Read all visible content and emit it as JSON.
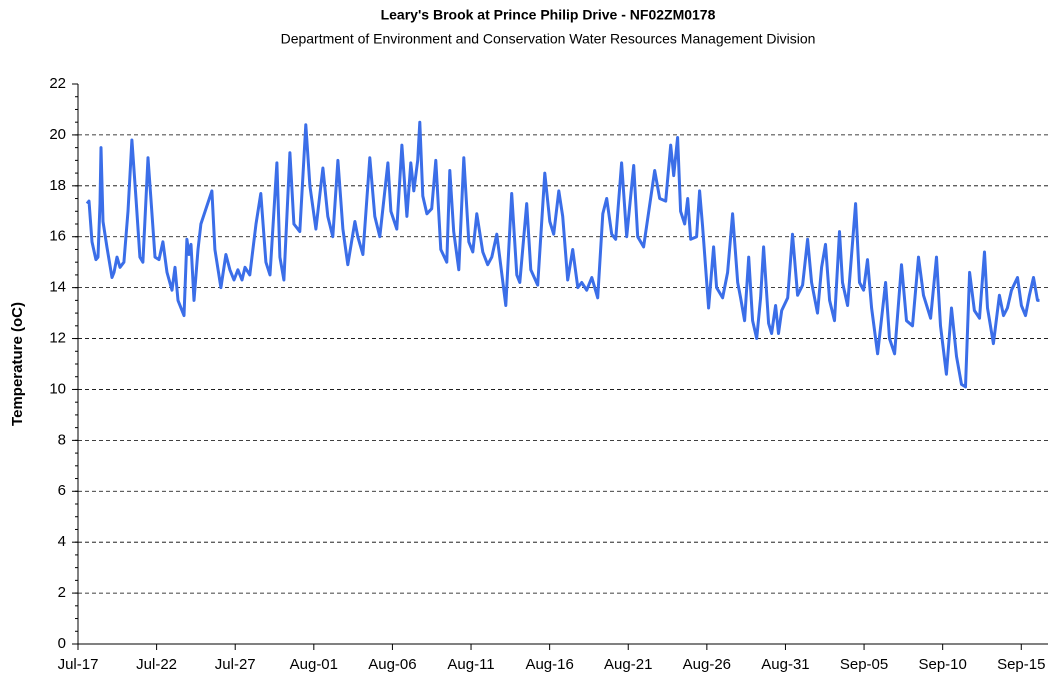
{
  "chart_data": {
    "type": "line",
    "title": "Leary's Brook at Prince Philip Drive - NF02ZM0178",
    "subtitle": "Department of Environment and Conservation Water Resources Management Division",
    "y_label": "Temperature (oC)",
    "xlim": [
      0,
      61.7
    ],
    "ylim": [
      0,
      22
    ],
    "xticks": [
      {
        "value": 0,
        "label": "Jul-17"
      },
      {
        "value": 5,
        "label": "Jul-22"
      },
      {
        "value": 10,
        "label": "Jul-27"
      },
      {
        "value": 15,
        "label": "Aug-01"
      },
      {
        "value": 20,
        "label": "Aug-06"
      },
      {
        "value": 25,
        "label": "Aug-11"
      },
      {
        "value": 30,
        "label": "Aug-16"
      },
      {
        "value": 35,
        "label": "Aug-21"
      },
      {
        "value": 40,
        "label": "Aug-26"
      },
      {
        "value": 45,
        "label": "Aug-31"
      },
      {
        "value": 50,
        "label": "Sep-05"
      },
      {
        "value": 55,
        "label": "Sep-10"
      },
      {
        "value": 60,
        "label": "Sep-15"
      }
    ],
    "yticks": [
      0,
      2,
      4,
      6,
      8,
      10,
      12,
      14,
      16,
      18,
      20,
      22
    ],
    "grid": true,
    "series": [
      {
        "name": "Temperature",
        "color": "#3b6ee8",
        "x": [
          0.57,
          0.7,
          0.89,
          1.14,
          1.27,
          1.4,
          1.46,
          1.59,
          1.84,
          2.16,
          2.29,
          2.48,
          2.67,
          2.92,
          3.18,
          3.43,
          3.69,
          3.94,
          4.13,
          4.45,
          4.64,
          4.9,
          5.15,
          5.4,
          5.66,
          5.98,
          6.17,
          6.36,
          6.74,
          6.93,
          7.06,
          7.19,
          7.38,
          7.63,
          7.82,
          8.52,
          8.71,
          9.09,
          9.41,
          9.66,
          9.92,
          10.17,
          10.43,
          10.62,
          10.93,
          11.32,
          11.63,
          11.95,
          12.21,
          12.65,
          12.84,
          13.1,
          13.48,
          13.73,
          14.11,
          14.49,
          14.75,
          15.13,
          15.58,
          15.89,
          16.21,
          16.53,
          16.85,
          17.16,
          17.61,
          17.8,
          18.12,
          18.56,
          18.88,
          19.2,
          19.71,
          19.9,
          20.28,
          20.6,
          20.92,
          21.17,
          21.36,
          21.61,
          21.74,
          21.93,
          22.19,
          22.5,
          22.76,
          23.08,
          23.46,
          23.65,
          23.9,
          24.22,
          24.54,
          24.86,
          25.11,
          25.37,
          25.75,
          26.06,
          26.32,
          26.64,
          27.21,
          27.59,
          27.91,
          28.1,
          28.54,
          28.8,
          29.24,
          29.69,
          30.01,
          30.26,
          30.58,
          30.83,
          31.15,
          31.47,
          31.79,
          32.04,
          32.36,
          32.68,
          33.06,
          33.38,
          33.63,
          33.95,
          34.2,
          34.58,
          34.9,
          35.35,
          35.6,
          35.98,
          36.68,
          37.0,
          37.38,
          37.7,
          37.89,
          38.14,
          38.33,
          38.59,
          38.78,
          38.97,
          39.35,
          39.54,
          39.73,
          40.11,
          40.43,
          40.62,
          41.0,
          41.32,
          41.64,
          41.96,
          42.15,
          42.4,
          42.66,
          42.91,
          43.17,
          43.42,
          43.61,
          43.93,
          44.12,
          44.37,
          44.56,
          44.76,
          45.14,
          45.45,
          45.77,
          46.09,
          46.41,
          46.66,
          47.04,
          47.3,
          47.55,
          47.81,
          48.12,
          48.44,
          48.63,
          48.95,
          49.46,
          49.71,
          49.97,
          50.22,
          50.48,
          50.86,
          51.37,
          51.62,
          51.94,
          52.38,
          52.7,
          53.08,
          53.46,
          53.78,
          54.23,
          54.61,
          54.86,
          55.24,
          55.56,
          55.88,
          56.2,
          56.45,
          56.71,
          57.02,
          57.34,
          57.66,
          57.85,
          58.23,
          58.61,
          58.87,
          59.12,
          59.38,
          59.76,
          60.01,
          60.27,
          60.52,
          60.78,
          61.03,
          61.16
        ],
        "values": [
          17.3,
          17.4,
          15.8,
          15.1,
          15.2,
          17.3,
          19.5,
          16.6,
          15.6,
          14.4,
          14.6,
          15.2,
          14.8,
          15.0,
          17.0,
          19.8,
          17.5,
          15.2,
          15.0,
          19.1,
          17.5,
          15.2,
          15.1,
          15.8,
          14.6,
          13.9,
          14.8,
          13.5,
          12.9,
          15.9,
          15.3,
          15.7,
          13.5,
          15.5,
          16.5,
          17.8,
          15.5,
          14.0,
          15.3,
          14.7,
          14.3,
          14.7,
          14.3,
          14.8,
          14.5,
          16.5,
          17.7,
          15.0,
          14.5,
          18.9,
          15.2,
          14.3,
          19.3,
          16.5,
          16.2,
          20.4,
          18.0,
          16.3,
          18.7,
          16.8,
          16.0,
          19.0,
          16.3,
          14.9,
          16.6,
          16.0,
          15.3,
          19.1,
          16.8,
          16.0,
          18.9,
          17.0,
          16.3,
          19.6,
          16.8,
          18.9,
          17.8,
          19.0,
          20.5,
          17.6,
          16.9,
          17.1,
          19.0,
          15.5,
          15.0,
          18.6,
          16.2,
          14.7,
          19.1,
          15.8,
          15.4,
          16.9,
          15.4,
          14.9,
          15.2,
          16.1,
          13.3,
          17.7,
          14.5,
          14.2,
          17.3,
          14.7,
          14.1,
          18.5,
          16.6,
          16.1,
          17.8,
          16.8,
          14.3,
          15.5,
          14.0,
          14.2,
          13.9,
          14.4,
          13.6,
          16.9,
          17.5,
          16.1,
          15.9,
          18.9,
          16.0,
          18.8,
          16.0,
          15.6,
          18.6,
          17.5,
          17.4,
          19.6,
          18.4,
          19.9,
          17.0,
          16.5,
          17.5,
          15.9,
          16.0,
          17.8,
          16.4,
          13.2,
          15.6,
          14.0,
          13.6,
          14.6,
          16.9,
          14.2,
          13.6,
          12.7,
          15.2,
          12.7,
          12.0,
          13.6,
          15.6,
          12.6,
          12.2,
          13.3,
          12.2,
          13.1,
          13.6,
          16.1,
          13.7,
          14.1,
          15.9,
          14.2,
          13.0,
          14.8,
          15.7,
          13.5,
          12.7,
          16.2,
          14.2,
          13.3,
          17.3,
          14.2,
          13.9,
          15.1,
          13.2,
          11.4,
          14.2,
          12.0,
          11.4,
          14.9,
          12.7,
          12.5,
          15.2,
          13.7,
          12.8,
          15.2,
          12.5,
          10.6,
          13.2,
          11.3,
          10.2,
          10.1,
          14.6,
          13.1,
          12.8,
          15.4,
          13.2,
          11.8,
          13.7,
          12.9,
          13.2,
          13.9,
          14.4,
          13.3,
          12.9,
          13.7,
          14.4,
          13.5,
          13.5
        ]
      }
    ]
  }
}
